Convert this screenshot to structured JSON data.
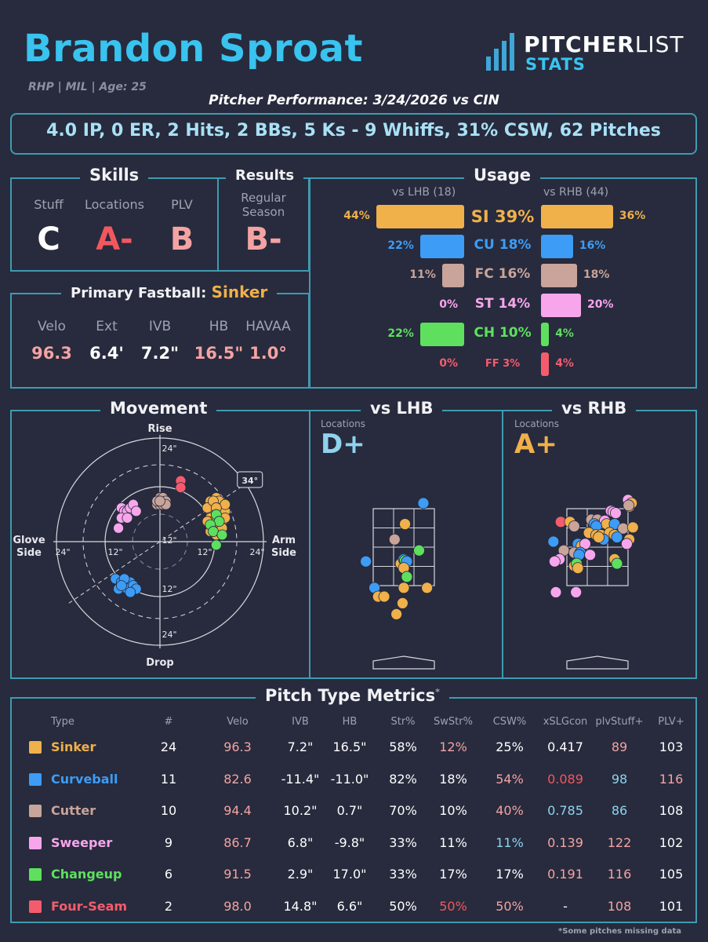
{
  "header": {
    "name": "Brandon Sproat",
    "bio": "RHP | MIL | Age: 25",
    "subtitle": "Pitcher Performance: 3/24/2026 vs CIN",
    "stat_line": "4.0 IP, 0 ER, 2 Hits, 2 BBs, 5 Ks - 9 Whiffs, 31% CSW, 62 Pitches",
    "logo_top": "PITCHER",
    "logo_top2": "LIST",
    "logo_bottom": "STATS"
  },
  "skills": {
    "title": "Skills",
    "labels": [
      "Stuff",
      "Locations",
      "PLV"
    ],
    "grades": [
      "C",
      "A-",
      "B"
    ],
    "grade_colors": [
      "#ffffff",
      "#f2575f",
      "#f4a3a3"
    ]
  },
  "results": {
    "title": "Results",
    "label": "Regular Season",
    "grade": "B-",
    "grade_color": "#f4a3a3"
  },
  "fastball": {
    "title": "Primary Fastball:",
    "pitch": "Sinker",
    "labels": [
      "Velo",
      "Ext",
      "IVB",
      "HB",
      "HAVAA"
    ],
    "values": [
      "96.3",
      "6.4'",
      "7.2\"",
      "16.5\"",
      "1.0°"
    ],
    "value_colors": [
      "#f4a3a3",
      "#ffffff",
      "#ffffff",
      "#f4a3a3",
      "#f4a3a3"
    ]
  },
  "usage": {
    "title": "Usage",
    "lhb_label": "vs LHB (18)",
    "rhb_label": "vs RHB (44)",
    "rows": [
      {
        "pitch": "SI 39%",
        "lhb": 44,
        "rhb": 36,
        "lhb_label": "44%",
        "rhb_label": "36%",
        "color": "#f0b04a"
      },
      {
        "pitch": "CU 18%",
        "lhb": 22,
        "rhb": 16,
        "lhb_label": "22%",
        "rhb_label": "16%",
        "color": "#3d9cf5"
      },
      {
        "pitch": "FC 16%",
        "lhb": 11,
        "rhb": 18,
        "lhb_label": "11%",
        "rhb_label": "18%",
        "color": "#c9a49a"
      },
      {
        "pitch": "ST 14%",
        "lhb": 0,
        "rhb": 20,
        "lhb_label": "0%",
        "rhb_label": "20%",
        "color": "#f8a6ec"
      },
      {
        "pitch": "CH 10%",
        "lhb": 22,
        "rhb": 4,
        "lhb_label": "22%",
        "rhb_label": "4%",
        "color": "#5ee05e"
      },
      {
        "pitch": "FF 3%",
        "lhb": 0,
        "rhb": 4,
        "lhb_label": "0%",
        "rhb_label": "4%",
        "color": "#f45c6e"
      }
    ]
  },
  "movement": {
    "title": "Movement",
    "rise": "Rise",
    "drop": "Drop",
    "glove": "Glove Side",
    "arm": "Arm Side",
    "ring_labels": [
      "24\"",
      "12\"",
      "12\"",
      "24\"",
      "24\"",
      "12\"",
      "12\"",
      "24\""
    ],
    "arm_angle": "34°"
  },
  "locations": {
    "lhb_title": "vs LHB",
    "rhb_title": "vs RHB",
    "label": "Locations",
    "lhb_grade": "D+",
    "rhb_grade": "A+",
    "lhb_color": "#8fd3ee",
    "rhb_color": "#f0b04a"
  },
  "metrics": {
    "title": "Pitch Type Metrics",
    "asterisk": "*",
    "headers": [
      "Type",
      "#",
      "Velo",
      "IVB",
      "HB",
      "Str%",
      "SwStr%",
      "CSW%",
      "xSLGcon",
      "plvStuff+",
      "PLV+"
    ],
    "rows": [
      {
        "type": "Sinker",
        "color": "#f0b04a",
        "cells": [
          "24",
          "96.3",
          "7.2\"",
          "16.5\"",
          "58%",
          "12%",
          "25%",
          "0.417",
          "89",
          "103"
        ],
        "cell_colors": [
          "#fff",
          "#f4a3a3",
          "#fff",
          "#fff",
          "#fff",
          "#f4a3a3",
          "#fff",
          "#fff",
          "#f4a3a3",
          "#fff"
        ]
      },
      {
        "type": "Curveball",
        "color": "#3d9cf5",
        "cells": [
          "11",
          "82.6",
          "-11.4\"",
          "-11.0\"",
          "82%",
          "18%",
          "54%",
          "0.089",
          "98",
          "116"
        ],
        "cell_colors": [
          "#fff",
          "#f4a3a3",
          "#fff",
          "#fff",
          "#fff",
          "#fff",
          "#f4a3a3",
          "#f2575f",
          "#8fd3ee",
          "#f4a3a3"
        ]
      },
      {
        "type": "Cutter",
        "color": "#c9a49a",
        "cells": [
          "10",
          "94.4",
          "10.2\"",
          "0.7\"",
          "70%",
          "10%",
          "40%",
          "0.785",
          "86",
          "108"
        ],
        "cell_colors": [
          "#fff",
          "#f4a3a3",
          "#fff",
          "#fff",
          "#fff",
          "#fff",
          "#f4a3a3",
          "#8fd3ee",
          "#8fd3ee",
          "#fff"
        ]
      },
      {
        "type": "Sweeper",
        "color": "#f8a6ec",
        "cells": [
          "9",
          "86.7",
          "6.8\"",
          "-9.8\"",
          "33%",
          "11%",
          "11%",
          "0.139",
          "122",
          "102"
        ],
        "cell_colors": [
          "#fff",
          "#f4a3a3",
          "#fff",
          "#fff",
          "#fff",
          "#fff",
          "#8fd3ee",
          "#f4a3a3",
          "#f4a3a3",
          "#fff"
        ]
      },
      {
        "type": "Changeup",
        "color": "#5ee05e",
        "cells": [
          "6",
          "91.5",
          "2.9\"",
          "17.0\"",
          "33%",
          "17%",
          "17%",
          "0.191",
          "116",
          "105"
        ],
        "cell_colors": [
          "#fff",
          "#f4a3a3",
          "#fff",
          "#fff",
          "#fff",
          "#fff",
          "#fff",
          "#f4a3a3",
          "#f4a3a3",
          "#fff"
        ]
      },
      {
        "type": "Four-Seam",
        "color": "#f45c6e",
        "cells": [
          "2",
          "98.0",
          "14.8\"",
          "6.6\"",
          "50%",
          "50%",
          "50%",
          "-",
          "108",
          "101"
        ],
        "cell_colors": [
          "#fff",
          "#f4a3a3",
          "#fff",
          "#fff",
          "#fff",
          "#f2575f",
          "#f4a3a3",
          "#fff",
          "#f4a3a3",
          "#fff"
        ]
      }
    ],
    "footnote": "*Some pitches missing data"
  },
  "chart_data": [
    {
      "type": "bar",
      "title": "Usage",
      "categories": [
        "SI 39%",
        "CU 18%",
        "FC 16%",
        "ST 14%",
        "CH 10%",
        "FF 3%"
      ],
      "series": [
        {
          "name": "vs LHB (18)",
          "values": [
            44,
            22,
            11,
            0,
            22,
            0
          ]
        },
        {
          "name": "vs RHB (44)",
          "values": [
            36,
            16,
            18,
            20,
            4,
            4
          ]
        }
      ]
    },
    {
      "type": "scatter",
      "title": "Movement",
      "xlabel": "Glove Side / Arm Side",
      "ylabel": "Rise / Drop",
      "xlim": [
        -30,
        30
      ],
      "ylim": [
        -30,
        30
      ],
      "series": [
        {
          "pitch": "Sinker",
          "color": "#f0b04a",
          "points": [
            [
              17,
              12
            ],
            [
              18,
              11
            ],
            [
              19,
              13
            ],
            [
              20,
              12
            ],
            [
              18,
              9
            ],
            [
              21,
              10
            ],
            [
              19,
              8
            ],
            [
              17,
              7
            ],
            [
              20,
              7
            ],
            [
              22,
              9
            ],
            [
              18,
              6
            ],
            [
              20,
              5
            ],
            [
              16,
              10
            ],
            [
              19,
              4
            ],
            [
              21,
              6
            ],
            [
              22,
              11
            ],
            [
              17,
              3
            ],
            [
              19,
              2
            ],
            [
              18,
              12
            ],
            [
              20,
              3
            ],
            [
              22,
              7
            ],
            [
              16,
              6
            ],
            [
              21,
              4
            ],
            [
              19,
              10
            ]
          ]
        },
        {
          "pitch": "Curveball",
          "color": "#3d9cf5",
          "points": [
            [
              -15,
              -11
            ],
            [
              -13,
              -12
            ],
            [
              -12,
              -13
            ],
            [
              -10,
              -12
            ],
            [
              -14,
              -14
            ],
            [
              -11,
              -14
            ],
            [
              -9,
              -13
            ],
            [
              -8,
              -14
            ],
            [
              -12,
              -11
            ],
            [
              -10,
              -15
            ],
            [
              -13,
              -13
            ]
          ]
        },
        {
          "pitch": "Cutter",
          "color": "#c9a49a",
          "points": [
            [
              0,
              13
            ],
            [
              1,
              12
            ],
            [
              -1,
              11
            ],
            [
              1,
              13
            ],
            [
              0,
              11
            ],
            [
              2,
              12
            ],
            [
              -1,
              12
            ],
            [
              1,
              11
            ],
            [
              2,
              11
            ],
            [
              0,
              12
            ]
          ]
        },
        {
          "pitch": "Sweeper",
          "color": "#f8a6ec",
          "points": [
            [
              -13,
              10
            ],
            [
              -12,
              9
            ],
            [
              -11,
              9
            ],
            [
              -10,
              10
            ],
            [
              -9,
              11
            ],
            [
              -8,
              9
            ],
            [
              -13,
              7
            ],
            [
              -14,
              4
            ],
            [
              -11,
              7
            ]
          ]
        },
        {
          "pitch": "Changeup",
          "color": "#5ee05e",
          "points": [
            [
              19,
              8
            ],
            [
              20,
              6
            ],
            [
              17,
              5
            ],
            [
              18,
              3
            ],
            [
              21,
              2
            ],
            [
              19,
              -1
            ]
          ]
        },
        {
          "pitch": "Four-Seam",
          "color": "#f45c6e",
          "points": [
            [
              7,
              18
            ],
            [
              7,
              16
            ]
          ]
        }
      ]
    },
    {
      "type": "scatter",
      "title": "vs LHB",
      "points": [
        {
          "x": 0.82,
          "y": 0.95,
          "c": "#3d9cf5"
        },
        {
          "x": 0.52,
          "y": 0.76,
          "c": "#f0b04a"
        },
        {
          "x": 0.35,
          "y": 0.62,
          "c": "#c9a49a"
        },
        {
          "x": 0.75,
          "y": 0.52,
          "c": "#5ee05e"
        },
        {
          "x": -0.12,
          "y": 0.42,
          "c": "#3d9cf5"
        },
        {
          "x": 0.45,
          "y": 0.4,
          "c": "#f0b04a"
        },
        {
          "x": 0.5,
          "y": 0.44,
          "c": "#3d9cf5"
        },
        {
          "x": 0.52,
          "y": 0.43,
          "c": "#5ee05e"
        },
        {
          "x": 0.55,
          "y": 0.42,
          "c": "#3d9cf5"
        },
        {
          "x": 0.5,
          "y": 0.36,
          "c": "#f0b04a"
        },
        {
          "x": 0.55,
          "y": 0.28,
          "c": "#5ee05e"
        },
        {
          "x": 0.02,
          "y": 0.18,
          "c": "#3d9cf5"
        },
        {
          "x": 0.5,
          "y": 0.18,
          "c": "#f0b04a"
        },
        {
          "x": 0.08,
          "y": 0.1,
          "c": "#f0b04a"
        },
        {
          "x": 0.18,
          "y": 0.1,
          "c": "#f0b04a"
        },
        {
          "x": 0.48,
          "y": 0.04,
          "c": "#f0b04a"
        },
        {
          "x": 0.88,
          "y": 0.18,
          "c": "#f0b04a"
        },
        {
          "x": 0.38,
          "y": -0.06,
          "c": "#f0b04a"
        }
      ]
    },
    {
      "type": "scatter",
      "title": "vs RHB",
      "points": [
        {
          "x": 1.0,
          "y": 0.98,
          "c": "#f8a6ec"
        },
        {
          "x": 1.02,
          "y": 0.92,
          "c": "#f0b04a"
        },
        {
          "x": 1.06,
          "y": 0.95,
          "c": "#f0b04a"
        },
        {
          "x": 1.01,
          "y": 0.93,
          "c": "#c9a49a"
        },
        {
          "x": 0.72,
          "y": 0.88,
          "c": "#f8a6ec"
        },
        {
          "x": 0.76,
          "y": 0.87,
          "c": "#f8a6ec"
        },
        {
          "x": 0.8,
          "y": 0.86,
          "c": "#f8a6ec"
        },
        {
          "x": 0.4,
          "y": 0.8,
          "c": "#c9a49a"
        },
        {
          "x": 0.5,
          "y": 0.8,
          "c": "#c9a49a"
        },
        {
          "x": 0.62,
          "y": 0.79,
          "c": "#f8a6ec"
        },
        {
          "x": 0.65,
          "y": 0.76,
          "c": "#f0b04a"
        },
        {
          "x": 0.78,
          "y": 0.76,
          "c": "#3d9cf5"
        },
        {
          "x": 0.45,
          "y": 0.76,
          "c": "#3d9cf5"
        },
        {
          "x": 0.48,
          "y": 0.74,
          "c": "#3d9cf5"
        },
        {
          "x": -0.1,
          "y": 0.78,
          "c": "#f45c6e"
        },
        {
          "x": 0.05,
          "y": 0.78,
          "c": "#f0b04a"
        },
        {
          "x": 0.12,
          "y": 0.74,
          "c": "#c9a49a"
        },
        {
          "x": 0.92,
          "y": 0.72,
          "c": "#c9a49a"
        },
        {
          "x": 1.08,
          "y": 0.73,
          "c": "#f0b04a"
        },
        {
          "x": 0.36,
          "y": 0.68,
          "c": "#f0b04a"
        },
        {
          "x": 0.48,
          "y": 0.66,
          "c": "#f0b04a"
        },
        {
          "x": 0.56,
          "y": 0.66,
          "c": "#f0b04a"
        },
        {
          "x": 0.7,
          "y": 0.68,
          "c": "#f0b04a"
        },
        {
          "x": 0.78,
          "y": 0.66,
          "c": "#f0b04a"
        },
        {
          "x": 0.6,
          "y": 0.62,
          "c": "#3d9cf5"
        },
        {
          "x": 0.52,
          "y": 0.64,
          "c": "#f0b04a"
        },
        {
          "x": 0.82,
          "y": 0.64,
          "c": "#3d9cf5"
        },
        {
          "x": 1.02,
          "y": 0.62,
          "c": "#f0b04a"
        },
        {
          "x": -0.22,
          "y": 0.6,
          "c": "#3d9cf5"
        },
        {
          "x": 0.98,
          "y": 0.58,
          "c": "#f8a6ec"
        },
        {
          "x": 0.18,
          "y": 0.58,
          "c": "#3d9cf5"
        },
        {
          "x": 0.24,
          "y": 0.56,
          "c": "#f0b04a"
        },
        {
          "x": 0.3,
          "y": 0.58,
          "c": "#f8a6ec"
        },
        {
          "x": -0.05,
          "y": 0.52,
          "c": "#c9a49a"
        },
        {
          "x": 0.12,
          "y": 0.5,
          "c": "#c9a49a"
        },
        {
          "x": 0.22,
          "y": 0.5,
          "c": "#3d9cf5"
        },
        {
          "x": 0.2,
          "y": 0.48,
          "c": "#3d9cf5"
        },
        {
          "x": 0.38,
          "y": 0.48,
          "c": "#f8a6ec"
        },
        {
          "x": 0.78,
          "y": 0.44,
          "c": "#f0b04a"
        },
        {
          "x": -0.12,
          "y": 0.44,
          "c": "#f8a6ec"
        },
        {
          "x": -0.2,
          "y": 0.42,
          "c": "#f8a6ec"
        },
        {
          "x": 0.82,
          "y": 0.4,
          "c": "#5ee05e"
        },
        {
          "x": 0.12,
          "y": 0.38,
          "c": "#f0b04a"
        },
        {
          "x": 0.16,
          "y": 0.4,
          "c": "#5ee05e"
        },
        {
          "x": 0.18,
          "y": 0.36,
          "c": "#f0b04a"
        },
        {
          "x": -0.18,
          "y": 0.14,
          "c": "#f8a6ec"
        },
        {
          "x": 0.15,
          "y": 0.14,
          "c": "#f8a6ec"
        }
      ]
    }
  ]
}
